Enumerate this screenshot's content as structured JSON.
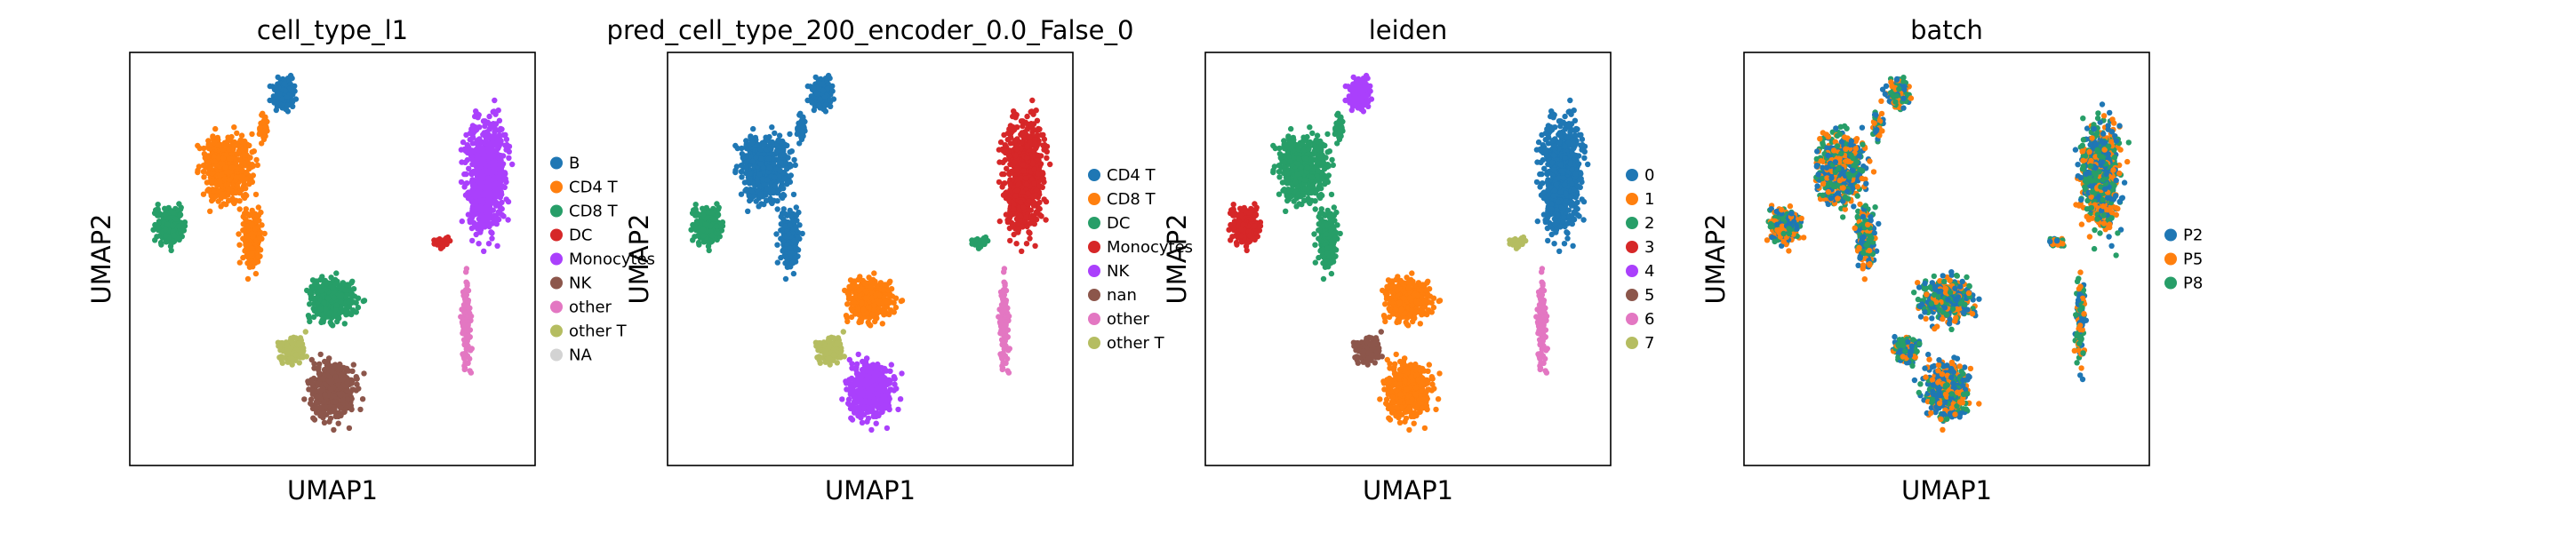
{
  "figure": {
    "type": "umap_embedding_grid",
    "n_panels": 4
  },
  "chart_data": [
    {
      "type": "scatter",
      "title": "cell_type_l1",
      "xlabel": "UMAP1",
      "ylabel": "UMAP2",
      "legend_position": "right",
      "grid": false,
      "categories": [
        {
          "name": "B",
          "color": "#1f77b4"
        },
        {
          "name": "CD4 T",
          "color": "#ff7f0e"
        },
        {
          "name": "CD8 T",
          "color": "#279e68"
        },
        {
          "name": "DC",
          "color": "#d62728"
        },
        {
          "name": "Monocytes",
          "color": "#aa40fc"
        },
        {
          "name": "NK",
          "color": "#8c564b"
        },
        {
          "name": "other",
          "color": "#e377c2"
        },
        {
          "name": "other T",
          "color": "#b5bd61"
        },
        {
          "name": "NA",
          "color": "#d3d3d3"
        }
      ]
    },
    {
      "type": "scatter",
      "title": "pred_cell_type_200_encoder_0.0_False_0",
      "xlabel": "UMAP1",
      "ylabel": "UMAP2",
      "legend_position": "right",
      "grid": false,
      "categories": [
        {
          "name": "CD4 T",
          "color": "#1f77b4"
        },
        {
          "name": "CD8 T",
          "color": "#ff7f0e"
        },
        {
          "name": "DC",
          "color": "#279e68"
        },
        {
          "name": "Monocytes",
          "color": "#d62728"
        },
        {
          "name": "NK",
          "color": "#aa40fc"
        },
        {
          "name": "nan",
          "color": "#8c564b"
        },
        {
          "name": "other",
          "color": "#e377c2"
        },
        {
          "name": "other T",
          "color": "#b5bd61"
        }
      ]
    },
    {
      "type": "scatter",
      "title": "leiden",
      "xlabel": "UMAP1",
      "ylabel": "UMAP2",
      "legend_position": "right",
      "grid": false,
      "categories": [
        {
          "name": "0",
          "color": "#1f77b4"
        },
        {
          "name": "1",
          "color": "#ff7f0e"
        },
        {
          "name": "2",
          "color": "#279e68"
        },
        {
          "name": "3",
          "color": "#d62728"
        },
        {
          "name": "4",
          "color": "#aa40fc"
        },
        {
          "name": "5",
          "color": "#8c564b"
        },
        {
          "name": "6",
          "color": "#e377c2"
        },
        {
          "name": "7",
          "color": "#b5bd61"
        }
      ]
    },
    {
      "type": "scatter",
      "title": "batch",
      "xlabel": "UMAP1",
      "ylabel": "UMAP2",
      "legend_position": "right",
      "grid": false,
      "categories": [
        {
          "name": "P2",
          "color": "#1f77b4"
        },
        {
          "name": "P5",
          "color": "#ff7f0e"
        },
        {
          "name": "P8",
          "color": "#279e68"
        }
      ]
    }
  ]
}
